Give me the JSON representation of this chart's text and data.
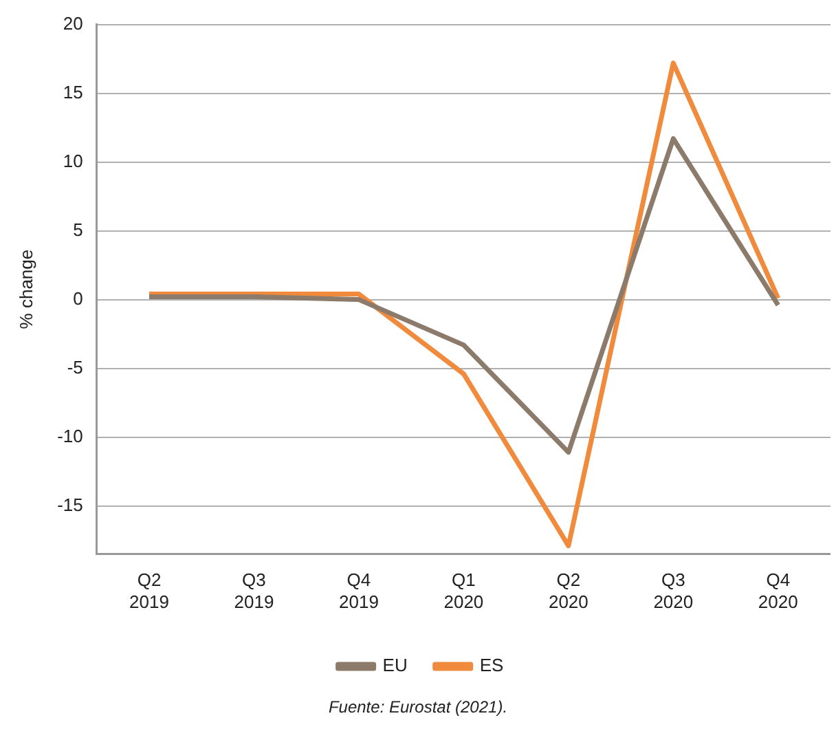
{
  "chart_data": {
    "type": "line",
    "ylabel": "% change",
    "categories": [
      "Q2\n2019",
      "Q3\n2019",
      "Q4\n2019",
      "Q1\n2020",
      "Q2\n2020",
      "Q3\n2020",
      "Q4\n2020"
    ],
    "series": [
      {
        "name": "EU",
        "color": "#8c7b6b",
        "values": [
          0.2,
          0.2,
          0.0,
          -3.3,
          -11.1,
          11.7,
          -0.4
        ]
      },
      {
        "name": "ES",
        "color": "#f08a3c",
        "values": [
          0.4,
          0.4,
          0.4,
          -5.4,
          -17.9,
          17.2,
          0.1
        ]
      }
    ],
    "ylim": [
      -18.5,
      20
    ],
    "yticks": [
      -15,
      -10,
      -5,
      0,
      5,
      10,
      15,
      20
    ],
    "grid": "y",
    "legend": "bottom",
    "marker": "none",
    "line_style": "solid",
    "annotations": [
      "Fuente: Eurostat (2021)."
    ]
  }
}
